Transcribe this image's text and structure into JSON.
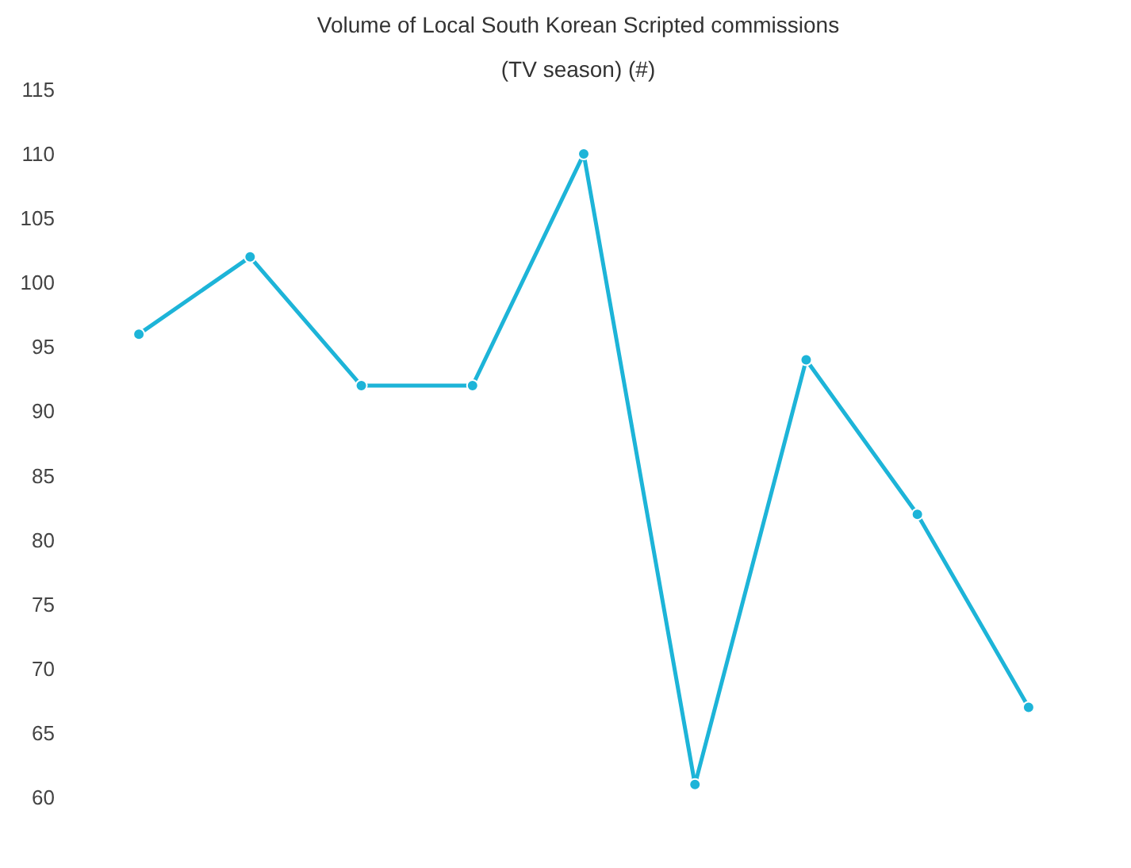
{
  "chart_data": {
    "type": "line",
    "title": "Volume of Local South Korean Scripted commissions",
    "subtitle": "(TV season) (#)",
    "categories": [
      null,
      null,
      null,
      null,
      null,
      null,
      null,
      null,
      null
    ],
    "series": [
      {
        "color": "#1db4d8",
        "values": [
          96,
          102,
          92,
          92,
          110,
          61,
          94,
          82,
          67
        ]
      }
    ],
    "ylim": [
      60,
      115
    ],
    "yticks": [
      60,
      65,
      70,
      75,
      80,
      85,
      90,
      95,
      100,
      105,
      110,
      115
    ],
    "grid": false,
    "marker": "circle",
    "line_style": "solid"
  }
}
